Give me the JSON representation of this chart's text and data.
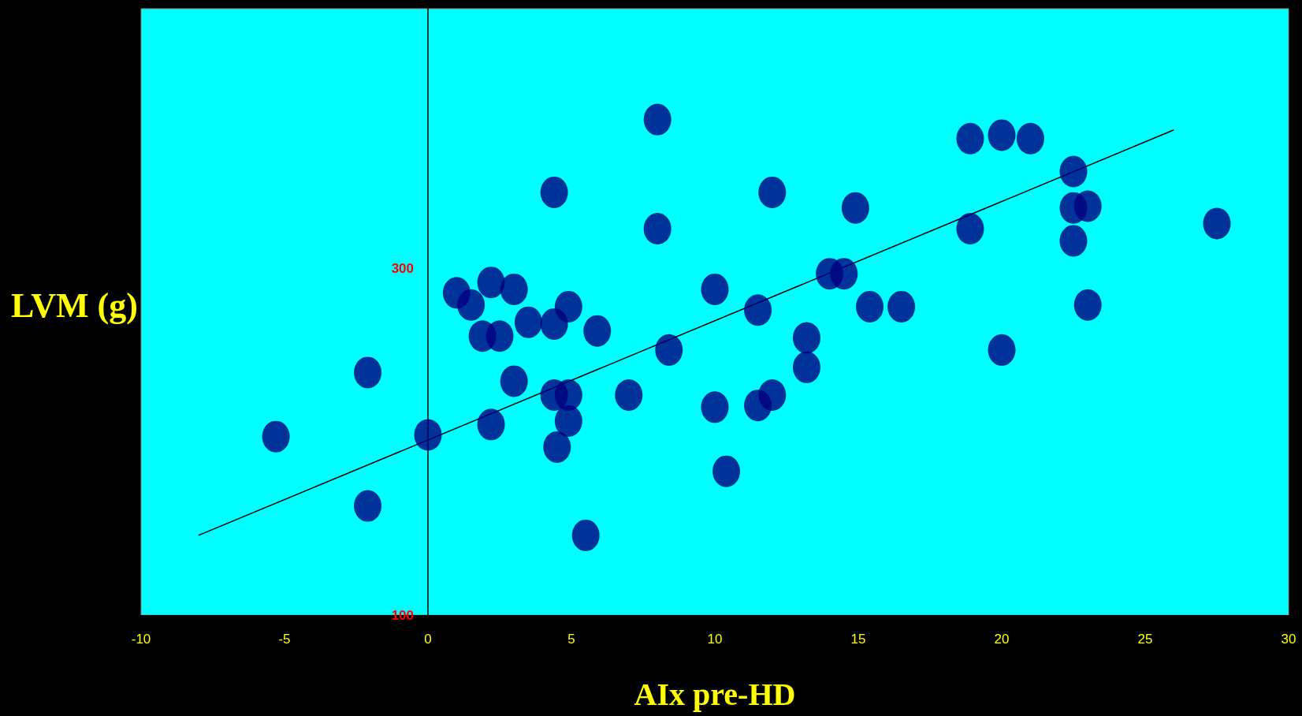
{
  "chart_data": {
    "type": "scatter",
    "xlabel": "AIx pre-HD",
    "ylabel": "LVM (g)",
    "xlim": [
      -10,
      30
    ],
    "xticks": [
      -10,
      -5,
      0,
      5,
      10,
      15,
      20,
      25,
      30
    ],
    "ylim": [
      100,
      450
    ],
    "yticks": [
      100,
      300
    ],
    "marker": "circle",
    "series": [
      {
        "color": "#000080",
        "x": [
          -5.3,
          -2.1,
          -2.1,
          0,
          1,
          1.5,
          2.2,
          3,
          1.9,
          2.5,
          3.5,
          4.4,
          4.9,
          5.9,
          3,
          2.2,
          4.4,
          4.9,
          4.9,
          4.5,
          5.5,
          4.4,
          8,
          8,
          7,
          8.4,
          10,
          10,
          10.4,
          11.5,
          11.5,
          12,
          12,
          13.2,
          13.2,
          14,
          14.5,
          14.9,
          15.4,
          16.5,
          18.9,
          20,
          21,
          18.9,
          20,
          22.5,
          22.5,
          23,
          22.5,
          23,
          27.5
        ],
        "values": [
          203,
          240,
          163,
          204,
          286,
          279,
          292,
          288,
          261,
          261,
          269,
          268,
          278,
          264,
          235,
          210,
          227,
          227,
          212,
          197,
          146,
          344,
          386,
          323,
          227,
          253,
          288,
          220,
          183,
          276,
          221,
          227,
          344,
          260,
          243,
          297,
          297,
          335,
          278,
          278,
          375,
          377,
          375,
          323,
          253,
          356,
          335,
          336,
          316,
          279,
          326
        ]
      },
      {
        "type": "line",
        "color": "#000000",
        "x": [
          -8,
          26
        ],
        "values": [
          146,
          380
        ],
        "marker": "none",
        "line_style": "solid"
      }
    ]
  }
}
